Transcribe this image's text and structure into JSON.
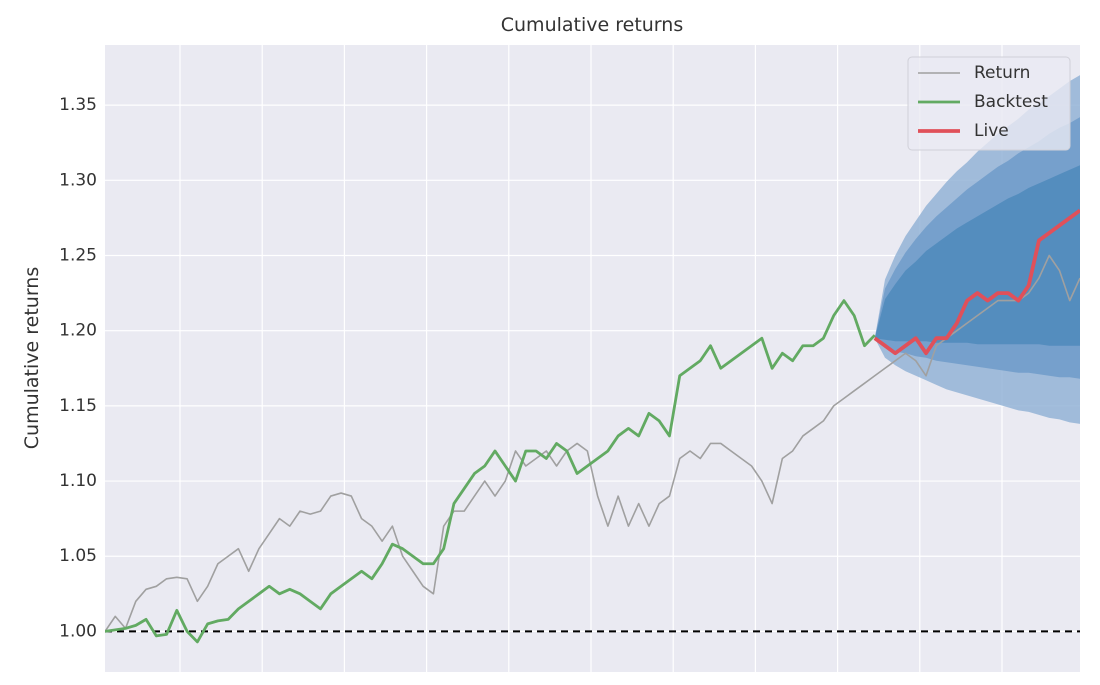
{
  "chart_data": {
    "type": "line",
    "title": "Cumulative returns",
    "ylabel": "Cumulative returns",
    "ylim": [
      0.973,
      1.39
    ],
    "yticks": [
      {
        "value": 1.0,
        "label": "1.00"
      },
      1.05,
      {
        "value": 1.1,
        "label": "1.10"
      },
      1.15,
      {
        "value": 1.2,
        "label": "1.20"
      },
      1.25,
      {
        "value": 1.3,
        "label": "1.30"
      },
      1.35
    ],
    "grid": true,
    "legend": "upper right",
    "baseline": 1.0,
    "series": [
      {
        "name": "Return",
        "color": "#a0a0a0",
        "values": [
          1.0,
          1.01,
          1.002,
          1.02,
          1.028,
          1.03,
          1.035,
          1.036,
          1.035,
          1.02,
          1.03,
          1.045,
          1.05,
          1.055,
          1.04,
          1.055,
          1.065,
          1.075,
          1.07,
          1.08,
          1.078,
          1.08,
          1.09,
          1.092,
          1.09,
          1.075,
          1.07,
          1.06,
          1.07,
          1.05,
          1.04,
          1.03,
          1.025,
          1.07,
          1.08,
          1.08,
          1.09,
          1.1,
          1.09,
          1.1,
          1.12,
          1.11,
          1.115,
          1.12,
          1.11,
          1.12,
          1.125,
          1.12,
          1.09,
          1.07,
          1.09,
          1.07,
          1.085,
          1.07,
          1.085,
          1.09,
          1.115,
          1.12,
          1.115,
          1.125,
          1.125,
          1.12,
          1.115,
          1.11,
          1.1,
          1.085,
          1.115,
          1.12,
          1.13,
          1.135,
          1.14,
          1.15,
          1.155,
          1.16,
          1.165,
          1.17,
          1.175,
          1.18,
          1.185,
          1.18,
          1.17,
          1.19,
          1.195,
          1.2,
          1.205,
          1.21,
          1.215,
          1.22,
          1.22,
          1.22,
          1.225,
          1.235,
          1.25,
          1.24,
          1.22,
          1.235
        ]
      },
      {
        "name": "Backtest",
        "color": "#62aa62",
        "values": [
          1.0,
          1.001,
          1.002,
          1.004,
          1.008,
          0.997,
          0.998,
          1.014,
          1.0,
          0.993,
          1.005,
          1.007,
          1.008,
          1.015,
          1.02,
          1.025,
          1.03,
          1.025,
          1.028,
          1.025,
          1.02,
          1.015,
          1.025,
          1.03,
          1.035,
          1.04,
          1.035,
          1.045,
          1.058,
          1.055,
          1.05,
          1.045,
          1.045,
          1.055,
          1.085,
          1.095,
          1.105,
          1.11,
          1.12,
          1.11,
          1.1,
          1.12,
          1.12,
          1.115,
          1.125,
          1.12,
          1.105,
          1.11,
          1.115,
          1.12,
          1.13,
          1.135,
          1.13,
          1.145,
          1.14,
          1.13,
          1.17,
          1.175,
          1.18,
          1.19,
          1.175,
          1.18,
          1.185,
          1.19,
          1.195,
          1.175,
          1.185,
          1.18,
          1.19,
          1.19,
          1.195,
          1.21,
          1.22,
          1.21,
          1.19,
          1.197,
          null,
          null,
          null,
          null,
          null,
          null,
          null,
          null,
          null,
          null,
          null,
          null,
          null,
          null,
          null,
          null,
          null,
          null,
          null,
          null
        ]
      },
      {
        "name": "Live",
        "color": "#e0505a",
        "values": [
          null,
          null,
          null,
          null,
          null,
          null,
          null,
          null,
          null,
          null,
          null,
          null,
          null,
          null,
          null,
          null,
          null,
          null,
          null,
          null,
          null,
          null,
          null,
          null,
          null,
          null,
          null,
          null,
          null,
          null,
          null,
          null,
          null,
          null,
          null,
          null,
          null,
          null,
          null,
          null,
          null,
          null,
          null,
          null,
          null,
          null,
          null,
          null,
          null,
          null,
          null,
          null,
          null,
          null,
          null,
          null,
          null,
          null,
          null,
          null,
          null,
          null,
          null,
          null,
          null,
          null,
          null,
          null,
          null,
          null,
          null,
          null,
          null,
          null,
          null,
          1.195,
          1.19,
          1.185,
          1.19,
          1.195,
          1.185,
          1.195,
          1.195,
          1.205,
          1.22,
          1.225,
          1.22,
          1.225,
          1.225,
          1.22,
          1.23,
          1.26,
          1.265,
          1.27,
          1.275,
          1.28
        ]
      }
    ],
    "cone": {
      "x": [
        75,
        76,
        77,
        78,
        79,
        80,
        81,
        82,
        83,
        84,
        85,
        86,
        87,
        88,
        89,
        90,
        91,
        92,
        93,
        94,
        95
      ],
      "bands": [
        {
          "color": "#93b3d6",
          "upper": [
            1.195,
            1.234,
            1.25,
            1.263,
            1.273,
            1.283,
            1.291,
            1.299,
            1.306,
            1.312,
            1.319,
            1.325,
            1.331,
            1.336,
            1.341,
            1.347,
            1.351,
            1.356,
            1.361,
            1.366,
            1.37
          ],
          "lower": [
            1.195,
            1.182,
            1.177,
            1.173,
            1.17,
            1.167,
            1.164,
            1.161,
            1.159,
            1.157,
            1.155,
            1.153,
            1.151,
            1.149,
            1.147,
            1.146,
            1.144,
            1.142,
            1.141,
            1.139,
            1.138
          ]
        },
        {
          "color": "#6f9bc9",
          "upper": [
            1.195,
            1.228,
            1.241,
            1.252,
            1.261,
            1.269,
            1.276,
            1.282,
            1.288,
            1.294,
            1.299,
            1.304,
            1.309,
            1.313,
            1.318,
            1.322,
            1.326,
            1.331,
            1.335,
            1.338,
            1.342
          ],
          "lower": [
            1.195,
            1.189,
            1.186,
            1.185,
            1.183,
            1.182,
            1.18,
            1.179,
            1.178,
            1.177,
            1.176,
            1.175,
            1.174,
            1.173,
            1.172,
            1.172,
            1.171,
            1.17,
            1.169,
            1.169,
            1.168
          ]
        },
        {
          "color": "#4f89bb",
          "upper": [
            1.195,
            1.221,
            1.231,
            1.24,
            1.246,
            1.253,
            1.258,
            1.263,
            1.268,
            1.272,
            1.276,
            1.28,
            1.284,
            1.288,
            1.291,
            1.295,
            1.298,
            1.301,
            1.304,
            1.307,
            1.31
          ],
          "lower": [
            1.195,
            1.194,
            1.193,
            1.193,
            1.193,
            1.193,
            1.192,
            1.192,
            1.192,
            1.192,
            1.191,
            1.191,
            1.191,
            1.191,
            1.191,
            1.191,
            1.191,
            1.19,
            1.19,
            1.19,
            1.19
          ]
        }
      ]
    }
  }
}
